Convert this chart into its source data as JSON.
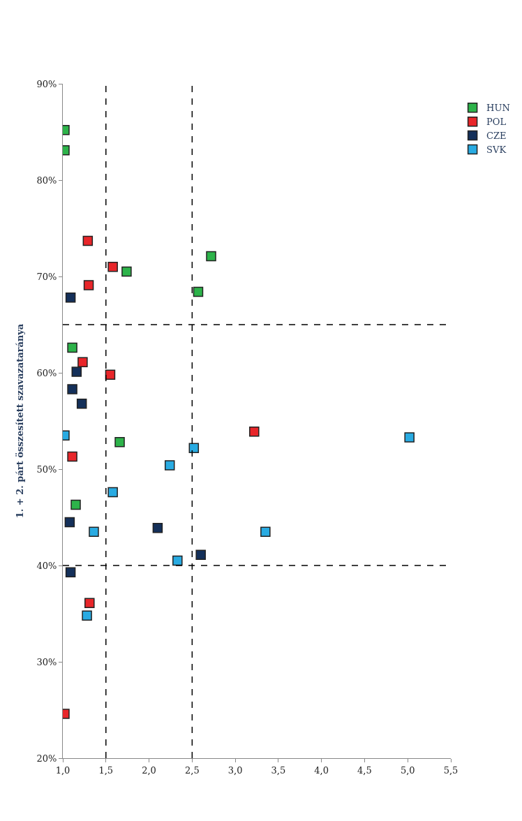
{
  "chart_data": {
    "type": "scatter",
    "ylabel": "1. + 2. párt összesített szavazataránya",
    "xlim": [
      1.0,
      5.5
    ],
    "xticks": [
      {
        "value": 1.0,
        "label": "1,0"
      },
      {
        "value": 1.5,
        "label": "1,5"
      },
      {
        "value": 2.0,
        "label": "2,0"
      },
      {
        "value": 2.5,
        "label": "2,5"
      },
      {
        "value": 3.0,
        "label": "3,0"
      },
      {
        "value": 3.5,
        "label": "3,5"
      },
      {
        "value": 4.0,
        "label": "4,0"
      },
      {
        "value": 4.5,
        "label": "4,5"
      },
      {
        "value": 5.0,
        "label": "5,0"
      },
      {
        "value": 5.5,
        "label": "5,5"
      }
    ],
    "ylim": [
      20,
      90
    ],
    "yticks": [
      {
        "value": 20,
        "label": "20%"
      },
      {
        "value": 30,
        "label": "30%"
      },
      {
        "value": 40,
        "label": "40%"
      },
      {
        "value": 50,
        "label": "50%"
      },
      {
        "value": 60,
        "label": "60%"
      },
      {
        "value": 70,
        "label": "70%"
      },
      {
        "value": 80,
        "label": "80%"
      },
      {
        "value": 90,
        "label": "90%"
      }
    ],
    "marker": "square",
    "legend": "right",
    "series": [
      {
        "name": "HUN",
        "color": "#2db34a",
        "x": [
          1.02,
          1.02,
          2.72,
          1.74,
          2.57,
          1.11,
          1.66,
          1.15
        ],
        "values": [
          85.2,
          83.1,
          72.1,
          70.5,
          68.4,
          62.6,
          52.8,
          46.3
        ]
      },
      {
        "name": "POL",
        "color": "#e8262a",
        "x": [
          1.29,
          1.58,
          1.3,
          1.23,
          1.55,
          3.22,
          1.11,
          1.31,
          1.02
        ],
        "values": [
          73.7,
          71.0,
          69.1,
          61.1,
          59.8,
          53.9,
          51.3,
          36.1,
          24.6
        ]
      },
      {
        "name": "CZE",
        "color": "#14305a",
        "x": [
          1.09,
          1.16,
          1.11,
          1.22,
          2.1,
          1.08,
          2.6,
          1.09
        ],
        "values": [
          67.8,
          60.1,
          58.3,
          56.8,
          43.9,
          44.5,
          41.1,
          39.3
        ]
      },
      {
        "name": "SVK",
        "color": "#29abe2",
        "x": [
          1.02,
          2.52,
          2.24,
          1.58,
          1.36,
          3.35,
          2.33,
          1.28,
          5.02
        ],
        "values": [
          53.5,
          52.2,
          50.4,
          47.6,
          43.5,
          43.5,
          40.5,
          34.8,
          53.3
        ]
      }
    ],
    "ref_lines": [
      {
        "axis": "x",
        "value": 1.5,
        "color": "#000000",
        "line_style": "dashed"
      },
      {
        "axis": "x",
        "value": 2.5,
        "color": "#000000",
        "line_style": "dashed"
      },
      {
        "axis": "y",
        "value": 65,
        "color": "#000000",
        "line_style": "dashed"
      },
      {
        "axis": "y",
        "value": 40,
        "color": "#000000",
        "line_style": "dashed"
      }
    ]
  }
}
